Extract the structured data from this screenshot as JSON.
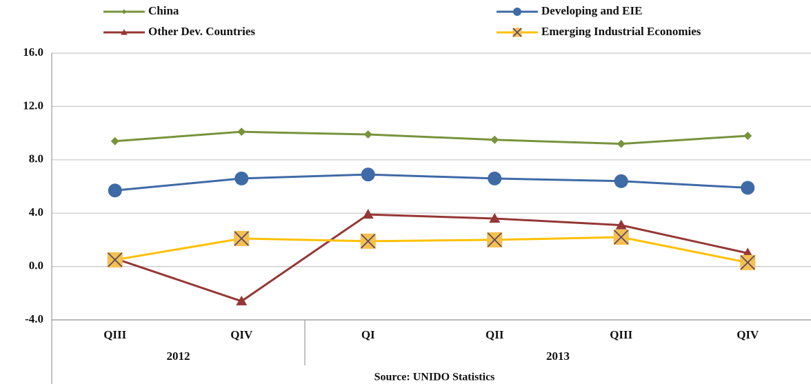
{
  "chart_data": {
    "type": "line",
    "categories": [
      "QIII",
      "QIV",
      "QI",
      "QII",
      "QIII",
      "QIV"
    ],
    "x_groups": [
      {
        "label": "2012",
        "count": 2
      },
      {
        "label": "2013",
        "count": 4
      }
    ],
    "series": [
      {
        "name": "China",
        "color": "#77933c",
        "marker": "diamond",
        "values": [
          9.4,
          10.1,
          9.9,
          9.5,
          9.2,
          9.8
        ]
      },
      {
        "name": "Developing and EIE",
        "color": "#3e6aa6",
        "marker": "circle",
        "values": [
          5.7,
          6.6,
          6.9,
          6.6,
          6.4,
          5.9
        ]
      },
      {
        "name": "Other Dev. Countries",
        "color": "#953735",
        "marker": "triangle",
        "values": [
          0.6,
          -2.6,
          3.9,
          3.6,
          3.1,
          1.0
        ]
      },
      {
        "name": "Emerging Industrial Economies",
        "color": "#ffc000",
        "marker": "x-square",
        "values": [
          0.5,
          2.1,
          1.9,
          2.0,
          2.2,
          0.3
        ]
      }
    ],
    "ylim": [
      -4,
      16
    ],
    "yticks": [
      {
        "value": -4,
        "label": "-4.0"
      },
      {
        "value": 0,
        "label": "0.0"
      },
      {
        "value": 4,
        "label": "4.0"
      },
      {
        "value": 8,
        "label": "8.0"
      },
      {
        "value": 12,
        "label": "12.0"
      },
      {
        "value": 16,
        "label": "16.0"
      }
    ],
    "grid": true,
    "legend": "top",
    "source": "Source: UNIDO Statistics"
  }
}
